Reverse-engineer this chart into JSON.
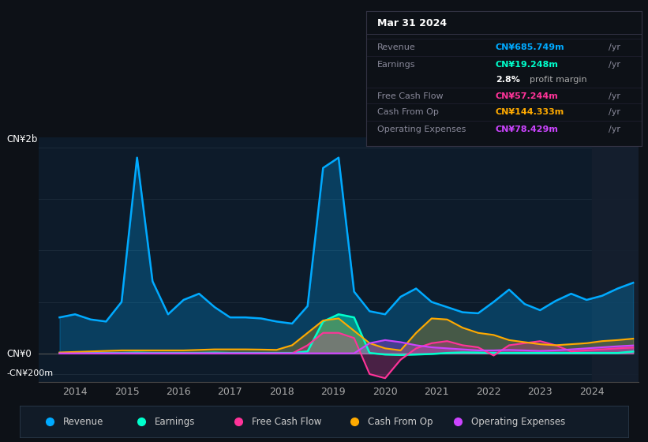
{
  "bg_color": "#0d1117",
  "plot_bg_color": "#0d1b2a",
  "grid_color": "#1e2d3d",
  "colors": {
    "revenue": "#00aaff",
    "earnings": "#00ffcc",
    "free_cash_flow": "#ff3399",
    "cash_from_op": "#ffaa00",
    "operating_expenses": "#cc44ff"
  },
  "legend": [
    {
      "label": "Revenue",
      "color": "#00aaff"
    },
    {
      "label": "Earnings",
      "color": "#00ffcc"
    },
    {
      "label": "Free Cash Flow",
      "color": "#ff3399"
    },
    {
      "label": "Cash From Op",
      "color": "#ffaa00"
    },
    {
      "label": "Operating Expenses",
      "color": "#cc44ff"
    }
  ],
  "tooltip": {
    "date": "Mar 31 2024",
    "revenue": "CN¥685.749m",
    "earnings": "CN¥19.248m",
    "profit_margin": "2.8%",
    "free_cash_flow": "CN¥57.244m",
    "cash_from_op": "CN¥144.333m",
    "operating_expenses": "CN¥78.429m"
  },
  "revenue": [
    350,
    380,
    330,
    310,
    500,
    1900,
    700,
    380,
    520,
    580,
    450,
    350,
    350,
    340,
    310,
    290,
    460,
    1800,
    1900,
    600,
    410,
    380,
    550,
    630,
    500,
    450,
    400,
    390,
    500,
    620,
    480,
    420,
    510,
    580,
    520,
    560,
    630,
    686
  ],
  "earnings": [
    5,
    5,
    5,
    5,
    5,
    8,
    5,
    5,
    5,
    5,
    8,
    5,
    5,
    5,
    5,
    5,
    20,
    310,
    380,
    350,
    5,
    -10,
    -15,
    -10,
    -5,
    5,
    10,
    8,
    5,
    5,
    5,
    5,
    5,
    5,
    5,
    5,
    5,
    19
  ],
  "free_cash_flow": [
    0,
    0,
    0,
    0,
    0,
    0,
    0,
    0,
    0,
    0,
    0,
    0,
    0,
    0,
    0,
    0,
    80,
    200,
    200,
    150,
    -200,
    -240,
    -60,
    50,
    100,
    120,
    80,
    60,
    -20,
    80,
    100,
    120,
    80,
    20,
    30,
    40,
    50,
    57
  ],
  "cash_from_op": [
    10,
    15,
    20,
    25,
    30,
    30,
    30,
    30,
    30,
    35,
    40,
    40,
    40,
    38,
    35,
    80,
    200,
    320,
    340,
    220,
    100,
    50,
    30,
    200,
    340,
    330,
    250,
    200,
    180,
    130,
    110,
    90,
    80,
    90,
    100,
    120,
    130,
    144
  ],
  "operating_expenses": [
    2,
    2,
    2,
    2,
    2,
    2,
    2,
    2,
    2,
    2,
    2,
    2,
    2,
    2,
    2,
    2,
    2,
    2,
    2,
    2,
    100,
    130,
    110,
    80,
    60,
    50,
    40,
    30,
    30,
    35,
    30,
    25,
    30,
    40,
    50,
    60,
    70,
    78
  ],
  "x_min": 2013.3,
  "x_max": 2024.9,
  "x_data_start": 2013.7,
  "y_min": -280,
  "y_max": 2100,
  "xticks": [
    2014,
    2015,
    2016,
    2017,
    2018,
    2019,
    2020,
    2021,
    2022,
    2023,
    2024
  ],
  "ylabel_2b_fig": [
    0.01,
    0.685
  ],
  "ylabel_0_fig": [
    0.01,
    0.2
  ],
  "ylabel_neg_fig": [
    0.01,
    0.155
  ]
}
